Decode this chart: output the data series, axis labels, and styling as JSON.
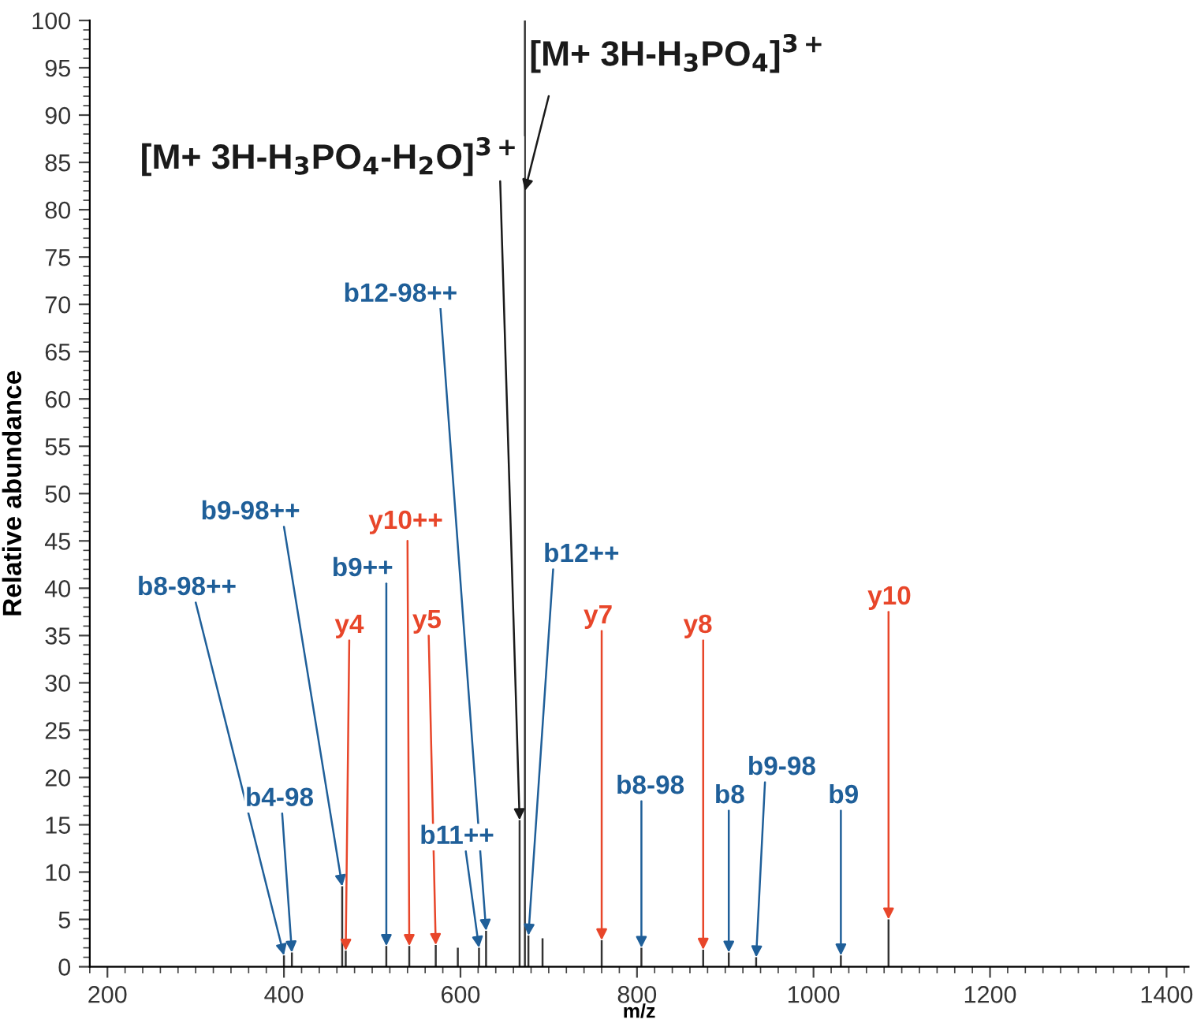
{
  "chart_data": {
    "type": "bar",
    "xlabel": "m/z",
    "ylabel": "Relative abundance",
    "x": [
      400,
      409,
      466,
      470,
      516,
      542,
      572,
      597,
      621,
      629,
      667,
      673,
      677,
      693,
      760,
      805,
      875,
      904,
      935,
      1031,
      1085
    ],
    "series": [
      {
        "color": "#333333",
        "values": [
          1.2,
          1.5,
          8.5,
          1.7,
          2.2,
          2.2,
          2.3,
          2,
          2,
          3.8,
          15.5,
          100,
          3.3,
          3,
          2.8,
          2,
          1.8,
          1.5,
          1,
          1.2,
          5
        ]
      }
    ],
    "xlim": [
      180,
      1425
    ],
    "xticks": [
      200,
      400,
      600,
      800,
      1000,
      1200,
      1400
    ],
    "ylim": [
      0,
      100
    ],
    "yticks": [
      0,
      5,
      10,
      15,
      20,
      25,
      30,
      35,
      40,
      45,
      50,
      55,
      60,
      65,
      70,
      75,
      80,
      85,
      90,
      95,
      100
    ],
    "grid": false,
    "legend": false,
    "annotations": [
      {
        "text": "[M+ 3H-H$_{3}$PO$_{4}$]$^{3+}$",
        "x": 673,
        "y": 82
      },
      {
        "text": "[M+ 3H-H$_{3}$PO$_{4}$-H$_{2}$O]$^{3+}$",
        "x": 667,
        "y": 15.5
      },
      {
        "text": "b12-98++",
        "x": 629,
        "y": 3.8
      },
      {
        "text": "y10++",
        "x": 542,
        "y": 2.2
      },
      {
        "text": "b9-98++",
        "x": 466,
        "y": 8.5
      },
      {
        "text": "b9++",
        "x": 516,
        "y": 2.2
      },
      {
        "text": "b8-98++",
        "x": 400,
        "y": 1.2
      },
      {
        "text": "y4",
        "x": 470,
        "y": 1.7
      },
      {
        "text": "y5",
        "x": 572,
        "y": 2.3
      },
      {
        "text": "b12++",
        "x": 677,
        "y": 3.3
      },
      {
        "text": "y7",
        "x": 760,
        "y": 2.8
      },
      {
        "text": "y8",
        "x": 875,
        "y": 1.8
      },
      {
        "text": "y10",
        "x": 1085,
        "y": 5
      },
      {
        "text": "b4-98",
        "x": 409,
        "y": 1.5
      },
      {
        "text": "b11++",
        "x": 621,
        "y": 2
      },
      {
        "text": "b8-98",
        "x": 805,
        "y": 2
      },
      {
        "text": "b8",
        "x": 904,
        "y": 1.5
      },
      {
        "text": "b9-98",
        "x": 935,
        "y": 1
      },
      {
        "text": "b9",
        "x": 1031,
        "y": 1.2
      }
    ]
  }
}
